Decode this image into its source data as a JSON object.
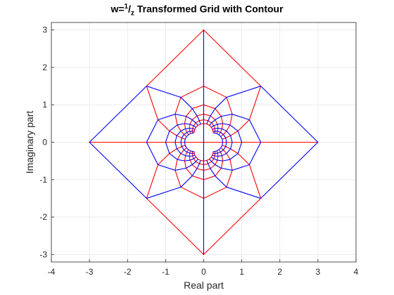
{
  "chart_data": {
    "type": "line",
    "title": {
      "prefix": "w=",
      "numerator": "1",
      "slash": "/",
      "denominator": "z",
      "suffix": " Transformed Grid with Contour"
    },
    "xlabel": "Real part",
    "ylabel": "Imaginary part",
    "xlim": [
      -4,
      4
    ],
    "ylim": [
      -3.2,
      3.2
    ],
    "xticks": [
      -4,
      -3,
      -2,
      -1,
      0,
      1,
      2,
      3,
      4
    ],
    "yticks": [
      -3,
      -2,
      -1,
      0,
      1,
      2,
      3
    ],
    "grid": true,
    "axis_box": true,
    "series": [
      {
        "color": "#ff0000",
        "description_family": "images of horizontal grid lines Im(z)=c under w=1/z",
        "grid_range": [
          -2,
          2
        ],
        "grid_count": 13,
        "samples": 13,
        "clip": 3.15
      },
      {
        "color": "#0000ff",
        "description_family": "images of vertical grid lines Re(z)=c under w=1/z",
        "grid_range": [
          -2,
          2
        ],
        "grid_count": 13,
        "samples": 13,
        "clip": 3.15
      }
    ],
    "colors": {
      "horizontal": "#ff0000",
      "vertical": "#0000ff",
      "grid": "#e6e6e6",
      "axis": "#262626"
    }
  }
}
